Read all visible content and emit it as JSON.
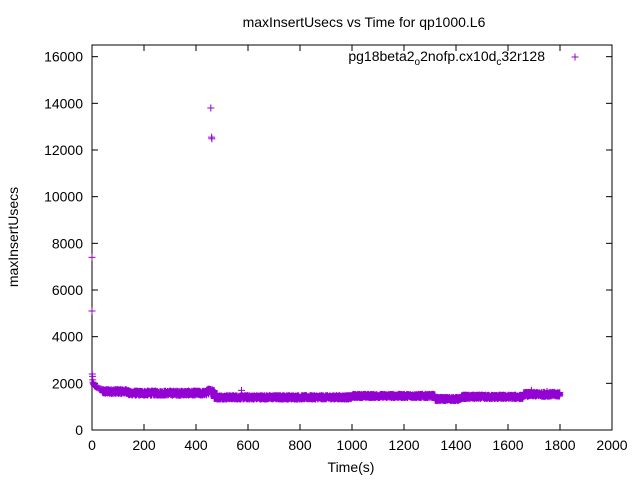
{
  "chart_data": {
    "type": "scatter",
    "title": "maxInsertUsecs vs Time for qp1000.L6",
    "xlabel": "Time(s)",
    "ylabel": "maxInsertUsecs",
    "xlim": [
      0,
      2000
    ],
    "ylim": [
      0,
      16500
    ],
    "xticks": [
      0,
      200,
      400,
      600,
      800,
      1000,
      1200,
      1400,
      1600,
      1800,
      2000
    ],
    "yticks": [
      0,
      2000,
      4000,
      6000,
      8000,
      10000,
      12000,
      14000,
      16000
    ],
    "grid": false,
    "legend_position": "top-right",
    "color": "#9400d3",
    "series": [
      {
        "name": "pg18beta2_o2nofp.cx10d_c32r128",
        "legend_parts": {
          "p1": "pg18beta2",
          "s1": "o",
          "p2": "2nofp.cx10d",
          "s2": "c",
          "p3": "32r128"
        },
        "points": [
          [
            0,
            7400
          ],
          [
            0,
            5100
          ],
          [
            1,
            2400
          ],
          [
            2,
            2300
          ],
          [
            3,
            2150
          ],
          [
            4,
            2050
          ],
          [
            5,
            2000
          ],
          [
            7,
            1950
          ],
          [
            9,
            1900
          ],
          [
            11,
            1880
          ],
          [
            14,
            1860
          ],
          [
            17,
            1840
          ],
          [
            20,
            1820
          ],
          [
            24,
            1800
          ],
          [
            28,
            1780
          ],
          [
            32,
            1760
          ],
          [
            36,
            1750
          ],
          [
            457,
            13800
          ],
          [
            460,
            12550
          ],
          [
            461,
            12480
          ],
          [
            575,
            1700
          ],
          [
            1690,
            1700
          ],
          [
            1750,
            1650
          ]
        ],
        "bands": [
          {
            "x0": 40,
            "x1": 140,
            "center": 1650,
            "spread": 180
          },
          {
            "x0": 140,
            "x1": 440,
            "center": 1580,
            "spread": 180
          },
          {
            "x0": 440,
            "x1": 470,
            "center": 1650,
            "spread": 220
          },
          {
            "x0": 470,
            "x1": 1000,
            "center": 1400,
            "spread": 150
          },
          {
            "x0": 1000,
            "x1": 1320,
            "center": 1460,
            "spread": 140
          },
          {
            "x0": 1320,
            "x1": 1420,
            "center": 1330,
            "spread": 140
          },
          {
            "x0": 1420,
            "x1": 1660,
            "center": 1420,
            "spread": 150
          },
          {
            "x0": 1660,
            "x1": 1800,
            "center": 1530,
            "spread": 170
          }
        ]
      }
    ]
  }
}
